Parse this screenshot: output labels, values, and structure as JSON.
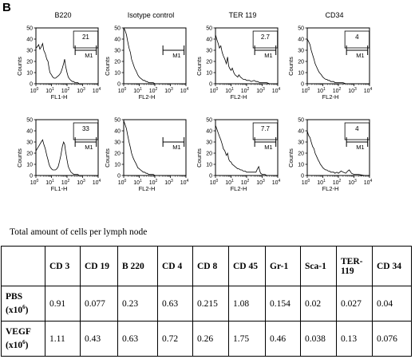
{
  "panel_letter": "B",
  "chart_data": [
    {
      "type": "line",
      "title": "B220",
      "xlabel": "FL1-H",
      "ylabel": "Counts",
      "marker_label": "M1",
      "marker_value": "21",
      "xlim": [
        1,
        10000
      ],
      "xscale": "log",
      "ylim": [
        0,
        50
      ],
      "yticks": [
        0,
        10,
        20,
        30,
        40,
        50
      ],
      "xtick_exponents": [
        0,
        1,
        2,
        3,
        4
      ],
      "series": [
        {
          "x": [
            1,
            1.2,
            1.5,
            1.8,
            2.2,
            2.7,
            3.2,
            4,
            5,
            6,
            7,
            8,
            10,
            12,
            15,
            18,
            22,
            27,
            32,
            40,
            50,
            60,
            70,
            80,
            100,
            120,
            150,
            180,
            220,
            270,
            320,
            400,
            500,
            600,
            800,
            1000,
            1500,
            2000,
            3000,
            5000,
            10000
          ],
          "y": [
            32,
            33,
            35,
            31,
            33,
            36,
            30,
            27,
            22,
            20,
            14,
            10,
            8,
            6,
            5,
            5,
            6,
            7,
            8,
            10,
            14,
            18,
            22,
            16,
            10,
            6,
            4,
            3,
            2,
            2,
            1,
            1,
            1,
            0,
            0,
            0,
            0,
            0,
            0,
            0,
            0
          ]
        }
      ]
    },
    {
      "type": "line",
      "title": "Isotype control",
      "xlabel": "FL2-H",
      "ylabel": "Counts",
      "marker_label": "M1",
      "marker_value": "",
      "xlim": [
        1,
        10000
      ],
      "xscale": "log",
      "ylim": [
        0,
        50
      ],
      "yticks": [
        0,
        10,
        20,
        30,
        40,
        50
      ],
      "xtick_exponents": [
        0,
        1,
        2,
        3,
        4
      ],
      "series": [
        {
          "x": [
            1,
            1.2,
            1.5,
            1.8,
            2.2,
            2.7,
            3.2,
            4,
            5,
            6,
            7,
            8,
            10,
            12,
            15,
            18,
            22,
            27,
            32,
            40,
            50,
            60,
            80,
            100,
            150,
            200,
            300,
            500,
            1000,
            10000
          ],
          "y": [
            50,
            48,
            44,
            38,
            32,
            28,
            22,
            18,
            14,
            12,
            10,
            8,
            6,
            5,
            4,
            3,
            3,
            2,
            2,
            1,
            1,
            1,
            1,
            0,
            0,
            0,
            0,
            0,
            0,
            0
          ]
        }
      ]
    },
    {
      "type": "line",
      "title": "TER 119",
      "xlabel": "FL2-H",
      "ylabel": "Counts",
      "marker_label": "M1",
      "marker_value": "2.7",
      "xlim": [
        1,
        10000
      ],
      "xscale": "log",
      "ylim": [
        0,
        50
      ],
      "yticks": [
        0,
        10,
        20,
        30,
        40,
        50
      ],
      "xtick_exponents": [
        0,
        1,
        2,
        3,
        4
      ],
      "series": [
        {
          "x": [
            1,
            1.2,
            1.5,
            1.8,
            2.2,
            2.7,
            3.2,
            4,
            5,
            6,
            7,
            8,
            10,
            12,
            15,
            18,
            22,
            27,
            32,
            40,
            50,
            60,
            80,
            100,
            150,
            200,
            300,
            400,
            500,
            700,
            1000,
            1500,
            2000,
            3000,
            5000,
            10000
          ],
          "y": [
            44,
            40,
            36,
            32,
            34,
            28,
            25,
            22,
            18,
            24,
            16,
            14,
            12,
            14,
            10,
            8,
            7,
            6,
            8,
            6,
            5,
            4,
            4,
            3,
            3,
            2,
            3,
            2,
            2,
            1,
            1,
            1,
            1,
            0,
            0,
            0
          ]
        }
      ]
    },
    {
      "type": "line",
      "title": "CD34",
      "xlabel": "FL2-H",
      "ylabel": "Counts",
      "marker_label": "M1",
      "marker_value": "4",
      "xlim": [
        1,
        10000
      ],
      "xscale": "log",
      "ylim": [
        0,
        50
      ],
      "yticks": [
        0,
        10,
        20,
        30,
        40,
        50
      ],
      "xtick_exponents": [
        0,
        1,
        2,
        3,
        4
      ],
      "series": [
        {
          "x": [
            1,
            1.2,
            1.5,
            1.8,
            2.2,
            2.7,
            3.2,
            4,
            5,
            6,
            7,
            8,
            10,
            12,
            15,
            18,
            22,
            27,
            32,
            40,
            50,
            60,
            80,
            100,
            150,
            200,
            300,
            500,
            1000,
            2000,
            5000,
            10000
          ],
          "y": [
            40,
            38,
            35,
            30,
            26,
            22,
            18,
            15,
            12,
            10,
            9,
            8,
            6,
            5,
            4,
            4,
            3,
            3,
            2,
            2,
            2,
            1,
            1,
            1,
            1,
            1,
            0,
            0,
            0,
            0,
            0,
            0
          ]
        }
      ]
    },
    {
      "type": "line",
      "title": "",
      "xlabel": "FL1-H",
      "ylabel": "Counts",
      "marker_label": "M1",
      "marker_value": "33",
      "xlim": [
        1,
        10000
      ],
      "xscale": "log",
      "ylim": [
        0,
        50
      ],
      "yticks": [
        0,
        10,
        20,
        30,
        40,
        50
      ],
      "xtick_exponents": [
        0,
        1,
        2,
        3,
        4
      ],
      "series": [
        {
          "x": [
            1,
            1.2,
            1.5,
            1.8,
            2.2,
            2.7,
            3.2,
            4,
            5,
            6,
            7,
            8,
            10,
            12,
            15,
            18,
            22,
            27,
            32,
            40,
            50,
            60,
            70,
            80,
            100,
            120,
            150,
            180,
            220,
            270,
            320,
            400,
            500,
            600,
            800,
            1000,
            1500,
            2000,
            3000,
            5000,
            10000
          ],
          "y": [
            22,
            24,
            26,
            28,
            30,
            32,
            28,
            24,
            18,
            14,
            10,
            8,
            6,
            5,
            5,
            5,
            6,
            8,
            12,
            18,
            26,
            30,
            28,
            22,
            14,
            8,
            5,
            3,
            2,
            1,
            1,
            1,
            1,
            0,
            0,
            0,
            0,
            0,
            0,
            0,
            0
          ]
        }
      ]
    },
    {
      "type": "line",
      "title": "",
      "xlabel": "FL2-H",
      "ylabel": "Counts",
      "marker_label": "M1",
      "marker_value": "",
      "xlim": [
        1,
        10000
      ],
      "xscale": "log",
      "ylim": [
        0,
        50
      ],
      "yticks": [
        0,
        10,
        20,
        30,
        40,
        50
      ],
      "xtick_exponents": [
        0,
        1,
        2,
        3,
        4
      ],
      "series": [
        {
          "x": [
            1,
            1.2,
            1.5,
            1.8,
            2.2,
            2.7,
            3.2,
            4,
            5,
            6,
            7,
            8,
            10,
            12,
            15,
            18,
            22,
            27,
            32,
            40,
            50,
            60,
            80,
            100,
            150,
            200,
            300,
            500,
            1000,
            10000
          ],
          "y": [
            49,
            46,
            42,
            36,
            30,
            25,
            20,
            16,
            13,
            11,
            9,
            7,
            6,
            5,
            4,
            3,
            3,
            2,
            2,
            1,
            1,
            1,
            1,
            0,
            0,
            0,
            0,
            0,
            0,
            0
          ]
        }
      ]
    },
    {
      "type": "line",
      "title": "",
      "xlabel": "FL2-H",
      "ylabel": "Counts",
      "marker_label": "M1",
      "marker_value": "7.7",
      "xlim": [
        1,
        10000
      ],
      "xscale": "log",
      "ylim": [
        0,
        50
      ],
      "yticks": [
        0,
        10,
        20,
        30,
        40,
        50
      ],
      "xtick_exponents": [
        0,
        1,
        2,
        3,
        4
      ],
      "series": [
        {
          "x": [
            1,
            1.2,
            1.5,
            1.8,
            2.2,
            2.7,
            3.2,
            4,
            5,
            6,
            7,
            8,
            10,
            12,
            15,
            18,
            22,
            27,
            32,
            40,
            50,
            60,
            80,
            100,
            150,
            200,
            300,
            400,
            500,
            600,
            700,
            800,
            1000,
            1500,
            2000,
            3000,
            5000,
            10000
          ],
          "y": [
            45,
            42,
            38,
            35,
            32,
            28,
            24,
            22,
            18,
            20,
            15,
            13,
            12,
            10,
            9,
            8,
            7,
            6,
            6,
            5,
            5,
            4,
            4,
            3,
            3,
            3,
            3,
            3,
            6,
            8,
            4,
            2,
            1,
            1,
            0,
            0,
            0,
            0
          ]
        }
      ]
    },
    {
      "type": "line",
      "title": "",
      "xlabel": "FL2-H",
      "ylabel": "Counts",
      "marker_label": "M1",
      "marker_value": "4",
      "xlim": [
        1,
        10000
      ],
      "xscale": "log",
      "ylim": [
        0,
        50
      ],
      "yticks": [
        0,
        10,
        20,
        30,
        40,
        50
      ],
      "xtick_exponents": [
        0,
        1,
        2,
        3,
        4
      ],
      "series": [
        {
          "x": [
            1,
            1.2,
            1.5,
            1.8,
            2.2,
            2.7,
            3.2,
            4,
            5,
            6,
            7,
            8,
            10,
            12,
            15,
            18,
            22,
            27,
            32,
            40,
            50,
            60,
            80,
            100,
            150,
            200,
            300,
            400,
            500,
            700,
            1000,
            2000,
            5000,
            10000
          ],
          "y": [
            40,
            36,
            34,
            30,
            26,
            24,
            20,
            17,
            14,
            12,
            10,
            9,
            7,
            6,
            5,
            5,
            4,
            4,
            3,
            3,
            3,
            2,
            3,
            2,
            4,
            3,
            2,
            4,
            5,
            2,
            1,
            1,
            0,
            0
          ]
        }
      ]
    },
    {
      "type": "table",
      "caption": "Total amount of cells per lymph node",
      "columns": [
        "CD 3",
        "CD 19",
        "B 220",
        "CD 4",
        "CD 8",
        "CD 45",
        "Gr-1",
        "Sca-1",
        "TER-119",
        "CD 34"
      ],
      "rows": [
        {
          "name": "PBS",
          "unit": "(x10",
          "unit_exp": "6",
          "unit_close": ")",
          "values": [
            "0.91",
            "0.077",
            "0.23",
            "0.63",
            "0.215",
            "1.08",
            "0.154",
            "0.02",
            "0.027",
            "0.04"
          ]
        },
        {
          "name": "VEGF",
          "unit": "(x10",
          "unit_exp": "6",
          "unit_close": ")",
          "values": [
            "1.11",
            "0.43",
            "0.63",
            "0.72",
            "0.26",
            "1.75",
            "0.46",
            "0.038",
            "0.13",
            "0.076"
          ]
        }
      ]
    }
  ]
}
